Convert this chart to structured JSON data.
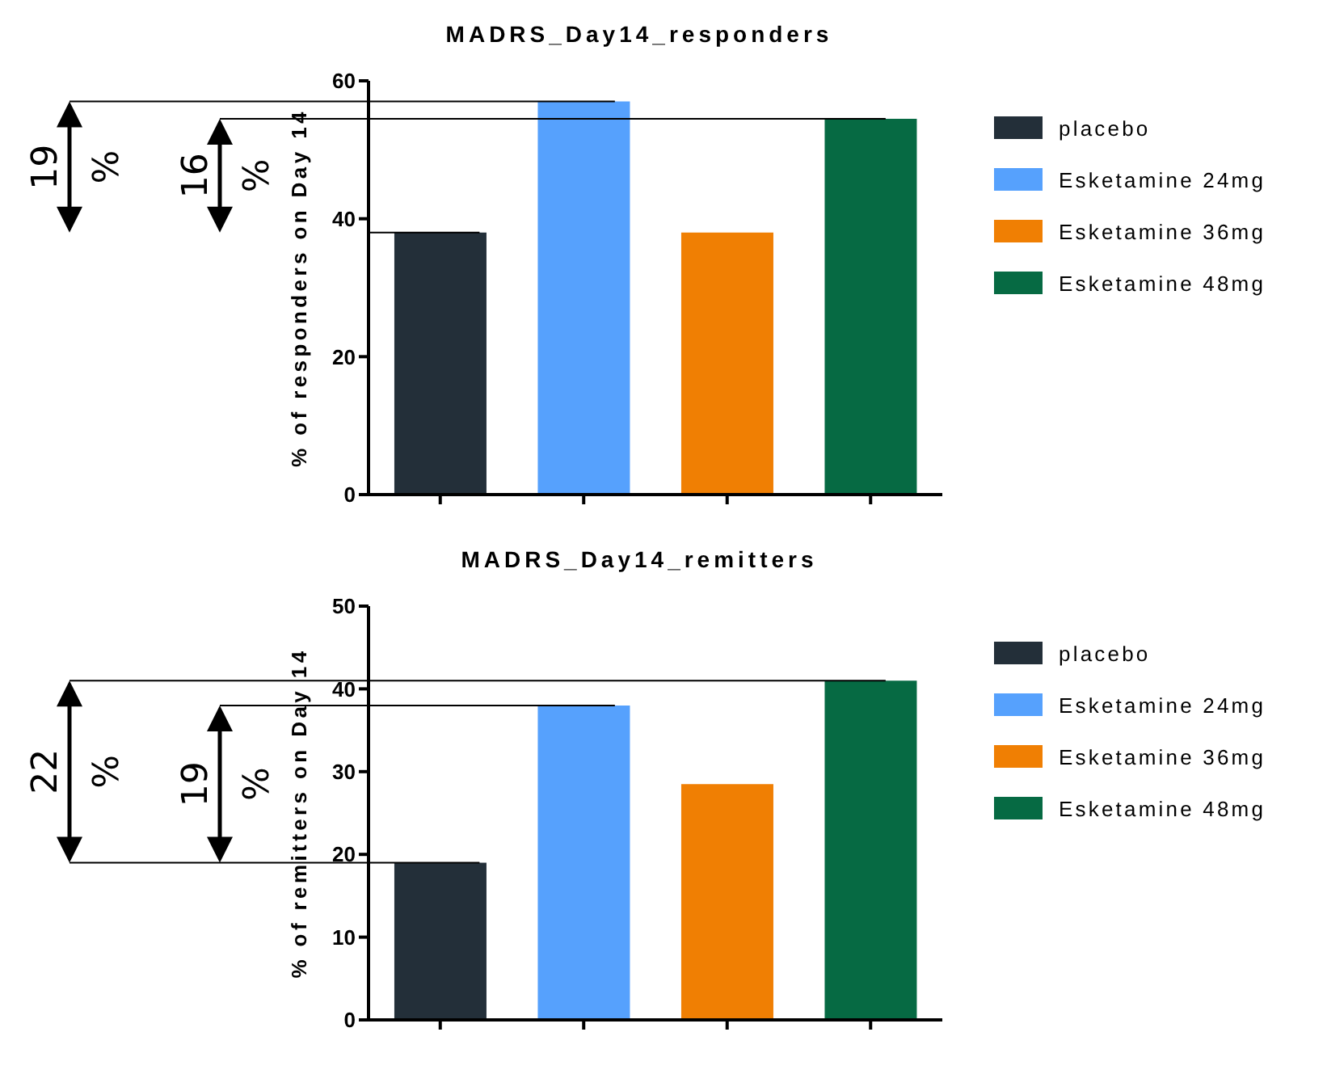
{
  "chart_data": [
    {
      "type": "bar",
      "title": "MADRS_Day14_responders",
      "ylabel": "% of responders on Day 14",
      "categories": [
        null,
        null,
        null,
        null
      ],
      "stacked": true,
      "ylim": [
        0,
        60
      ],
      "yticks": [
        0,
        20,
        40,
        60
      ],
      "tick_labels": "y",
      "legend": "right",
      "annotations": [
        "19 %",
        "16 %"
      ],
      "ref_lines": [
        {
          "axis": "y",
          "value": 57
        },
        {
          "axis": "y",
          "value": 54.5
        },
        {
          "axis": "y",
          "value": 38
        }
      ],
      "series": [
        {
          "name": "placebo",
          "color": "#232f39",
          "values": [
            38,
            null,
            null,
            null
          ]
        },
        {
          "name": "Esketamine 24mg",
          "color": "#56a1fd",
          "values": [
            null,
            57,
            null,
            null
          ]
        },
        {
          "name": "Esketamine 36mg",
          "color": "#f07f03",
          "values": [
            null,
            null,
            38,
            null
          ]
        },
        {
          "name": "Esketamine 48mg",
          "color": "#066a43",
          "values": [
            null,
            null,
            null,
            54.5
          ]
        }
      ]
    },
    {
      "type": "bar",
      "title": "MADRS_Day14_remitters",
      "ylabel": "% of remitters on Day 14",
      "categories": [
        null,
        null,
        null,
        null
      ],
      "stacked": true,
      "ylim": [
        0,
        50
      ],
      "yticks": [
        0,
        10,
        20,
        30,
        40,
        50
      ],
      "tick_labels": "y",
      "legend": "right",
      "annotations": [
        "22 %",
        "19 %"
      ],
      "ref_lines": [
        {
          "axis": "y",
          "value": 41
        },
        {
          "axis": "y",
          "value": 38
        },
        {
          "axis": "y",
          "value": 19
        }
      ],
      "series": [
        {
          "name": "placebo",
          "color": "#232f39",
          "values": [
            19,
            null,
            null,
            null
          ]
        },
        {
          "name": "Esketamine 24mg",
          "color": "#56a1fd",
          "values": [
            null,
            38,
            null,
            null
          ]
        },
        {
          "name": "Esketamine 36mg",
          "color": "#f07f03",
          "values": [
            null,
            null,
            28.5,
            null
          ]
        },
        {
          "name": "Esketamine 48mg",
          "color": "#066a43",
          "values": [
            null,
            null,
            null,
            41
          ]
        }
      ]
    }
  ]
}
